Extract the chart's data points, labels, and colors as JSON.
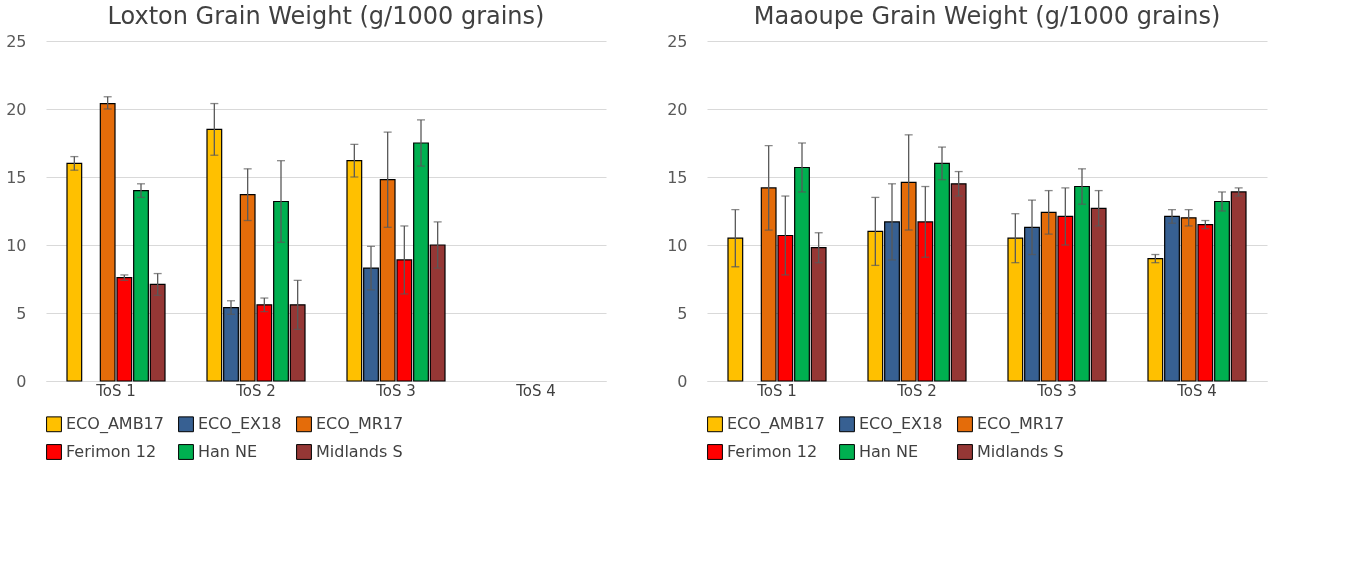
{
  "chart_data": [
    {
      "type": "bar",
      "title": "Loxton Grain Weight (g/1000 grains)",
      "categories": [
        "ToS 1",
        "ToS 2",
        "ToS 3",
        "ToS 4"
      ],
      "ylim": [
        0,
        25
      ],
      "yticks": [
        0,
        5,
        10,
        15,
        20,
        25
      ],
      "grid": "y",
      "legend": "bottom",
      "series": [
        {
          "name": "ECO_AMB17",
          "color": "#ffc000",
          "values": [
            16.0,
            18.5,
            16.2,
            null
          ],
          "errors": [
            [
              15.5,
              16.5
            ],
            [
              16.6,
              20.4
            ],
            [
              15.0,
              17.4
            ],
            null
          ]
        },
        {
          "name": "ECO_EX18",
          "color": "#376092",
          "values": [
            null,
            5.4,
            8.3,
            null
          ],
          "errors": [
            null,
            [
              4.9,
              5.9
            ],
            [
              6.7,
              9.9
            ],
            null
          ]
        },
        {
          "name": "ECO_MR17",
          "color": "#e46c0a",
          "values": [
            20.4,
            13.7,
            14.8,
            null
          ],
          "errors": [
            [
              20.0,
              20.9
            ],
            [
              11.8,
              15.6
            ],
            [
              11.3,
              18.3
            ],
            null
          ]
        },
        {
          "name": "Ferimon 12",
          "color": "#ff0000",
          "values": [
            7.6,
            5.6,
            8.9,
            null
          ],
          "errors": [
            [
              7.4,
              7.8
            ],
            [
              5.1,
              6.1
            ],
            [
              6.4,
              11.4
            ],
            null
          ]
        },
        {
          "name": "Han NE",
          "color": "#00b050",
          "values": [
            14.0,
            13.2,
            17.5,
            null
          ],
          "errors": [
            [
              13.5,
              14.5
            ],
            [
              10.2,
              16.2
            ],
            [
              15.8,
              19.2
            ],
            null
          ]
        },
        {
          "name": "Midlands S",
          "color": "#953735",
          "values": [
            7.1,
            5.6,
            10.0,
            null
          ],
          "errors": [
            [
              6.3,
              7.9
            ],
            [
              3.8,
              7.4
            ],
            [
              8.3,
              11.7
            ],
            null
          ]
        }
      ]
    },
    {
      "type": "bar",
      "title": "Maaoupe Grain Weight (g/1000 grains)",
      "categories": [
        "ToS 1",
        "ToS 2",
        "ToS 3",
        "ToS 4"
      ],
      "ylim": [
        0,
        25
      ],
      "yticks": [
        0,
        5,
        10,
        15,
        20,
        25
      ],
      "grid": "y",
      "legend": "bottom",
      "series": [
        {
          "name": "ECO_AMB17",
          "color": "#ffc000",
          "values": [
            10.5,
            11.0,
            10.5,
            9.0
          ],
          "errors": [
            [
              8.4,
              12.6
            ],
            [
              8.5,
              13.5
            ],
            [
              8.7,
              12.3
            ],
            [
              8.7,
              9.3
            ]
          ]
        },
        {
          "name": "ECO_EX18",
          "color": "#376092",
          "values": [
            null,
            11.7,
            11.3,
            12.1
          ],
          "errors": [
            null,
            [
              8.9,
              14.5
            ],
            [
              9.3,
              13.3
            ],
            [
              11.6,
              12.6
            ]
          ]
        },
        {
          "name": "ECO_MR17",
          "color": "#e46c0a",
          "values": [
            14.2,
            14.6,
            12.4,
            12.0
          ],
          "errors": [
            [
              11.1,
              17.3
            ],
            [
              11.1,
              18.1
            ],
            [
              10.8,
              14.0
            ],
            [
              11.4,
              12.6
            ]
          ]
        },
        {
          "name": "Ferimon 12",
          "color": "#ff0000",
          "values": [
            10.7,
            11.7,
            12.1,
            11.5
          ],
          "errors": [
            [
              7.8,
              13.6
            ],
            [
              9.1,
              14.3
            ],
            [
              10.0,
              14.2
            ],
            [
              11.2,
              11.8
            ]
          ]
        },
        {
          "name": "Han NE",
          "color": "#00b050",
          "values": [
            15.7,
            16.0,
            14.3,
            13.2
          ],
          "errors": [
            [
              13.9,
              17.5
            ],
            [
              14.8,
              17.2
            ],
            [
              13.0,
              15.6
            ],
            [
              12.5,
              13.9
            ]
          ]
        },
        {
          "name": "Midlands S",
          "color": "#953735",
          "values": [
            9.8,
            14.5,
            12.7,
            13.9
          ],
          "errors": [
            [
              8.7,
              10.9
            ],
            [
              13.6,
              15.4
            ],
            [
              11.4,
              14.0
            ],
            [
              13.6,
              14.2
            ]
          ]
        }
      ]
    }
  ]
}
